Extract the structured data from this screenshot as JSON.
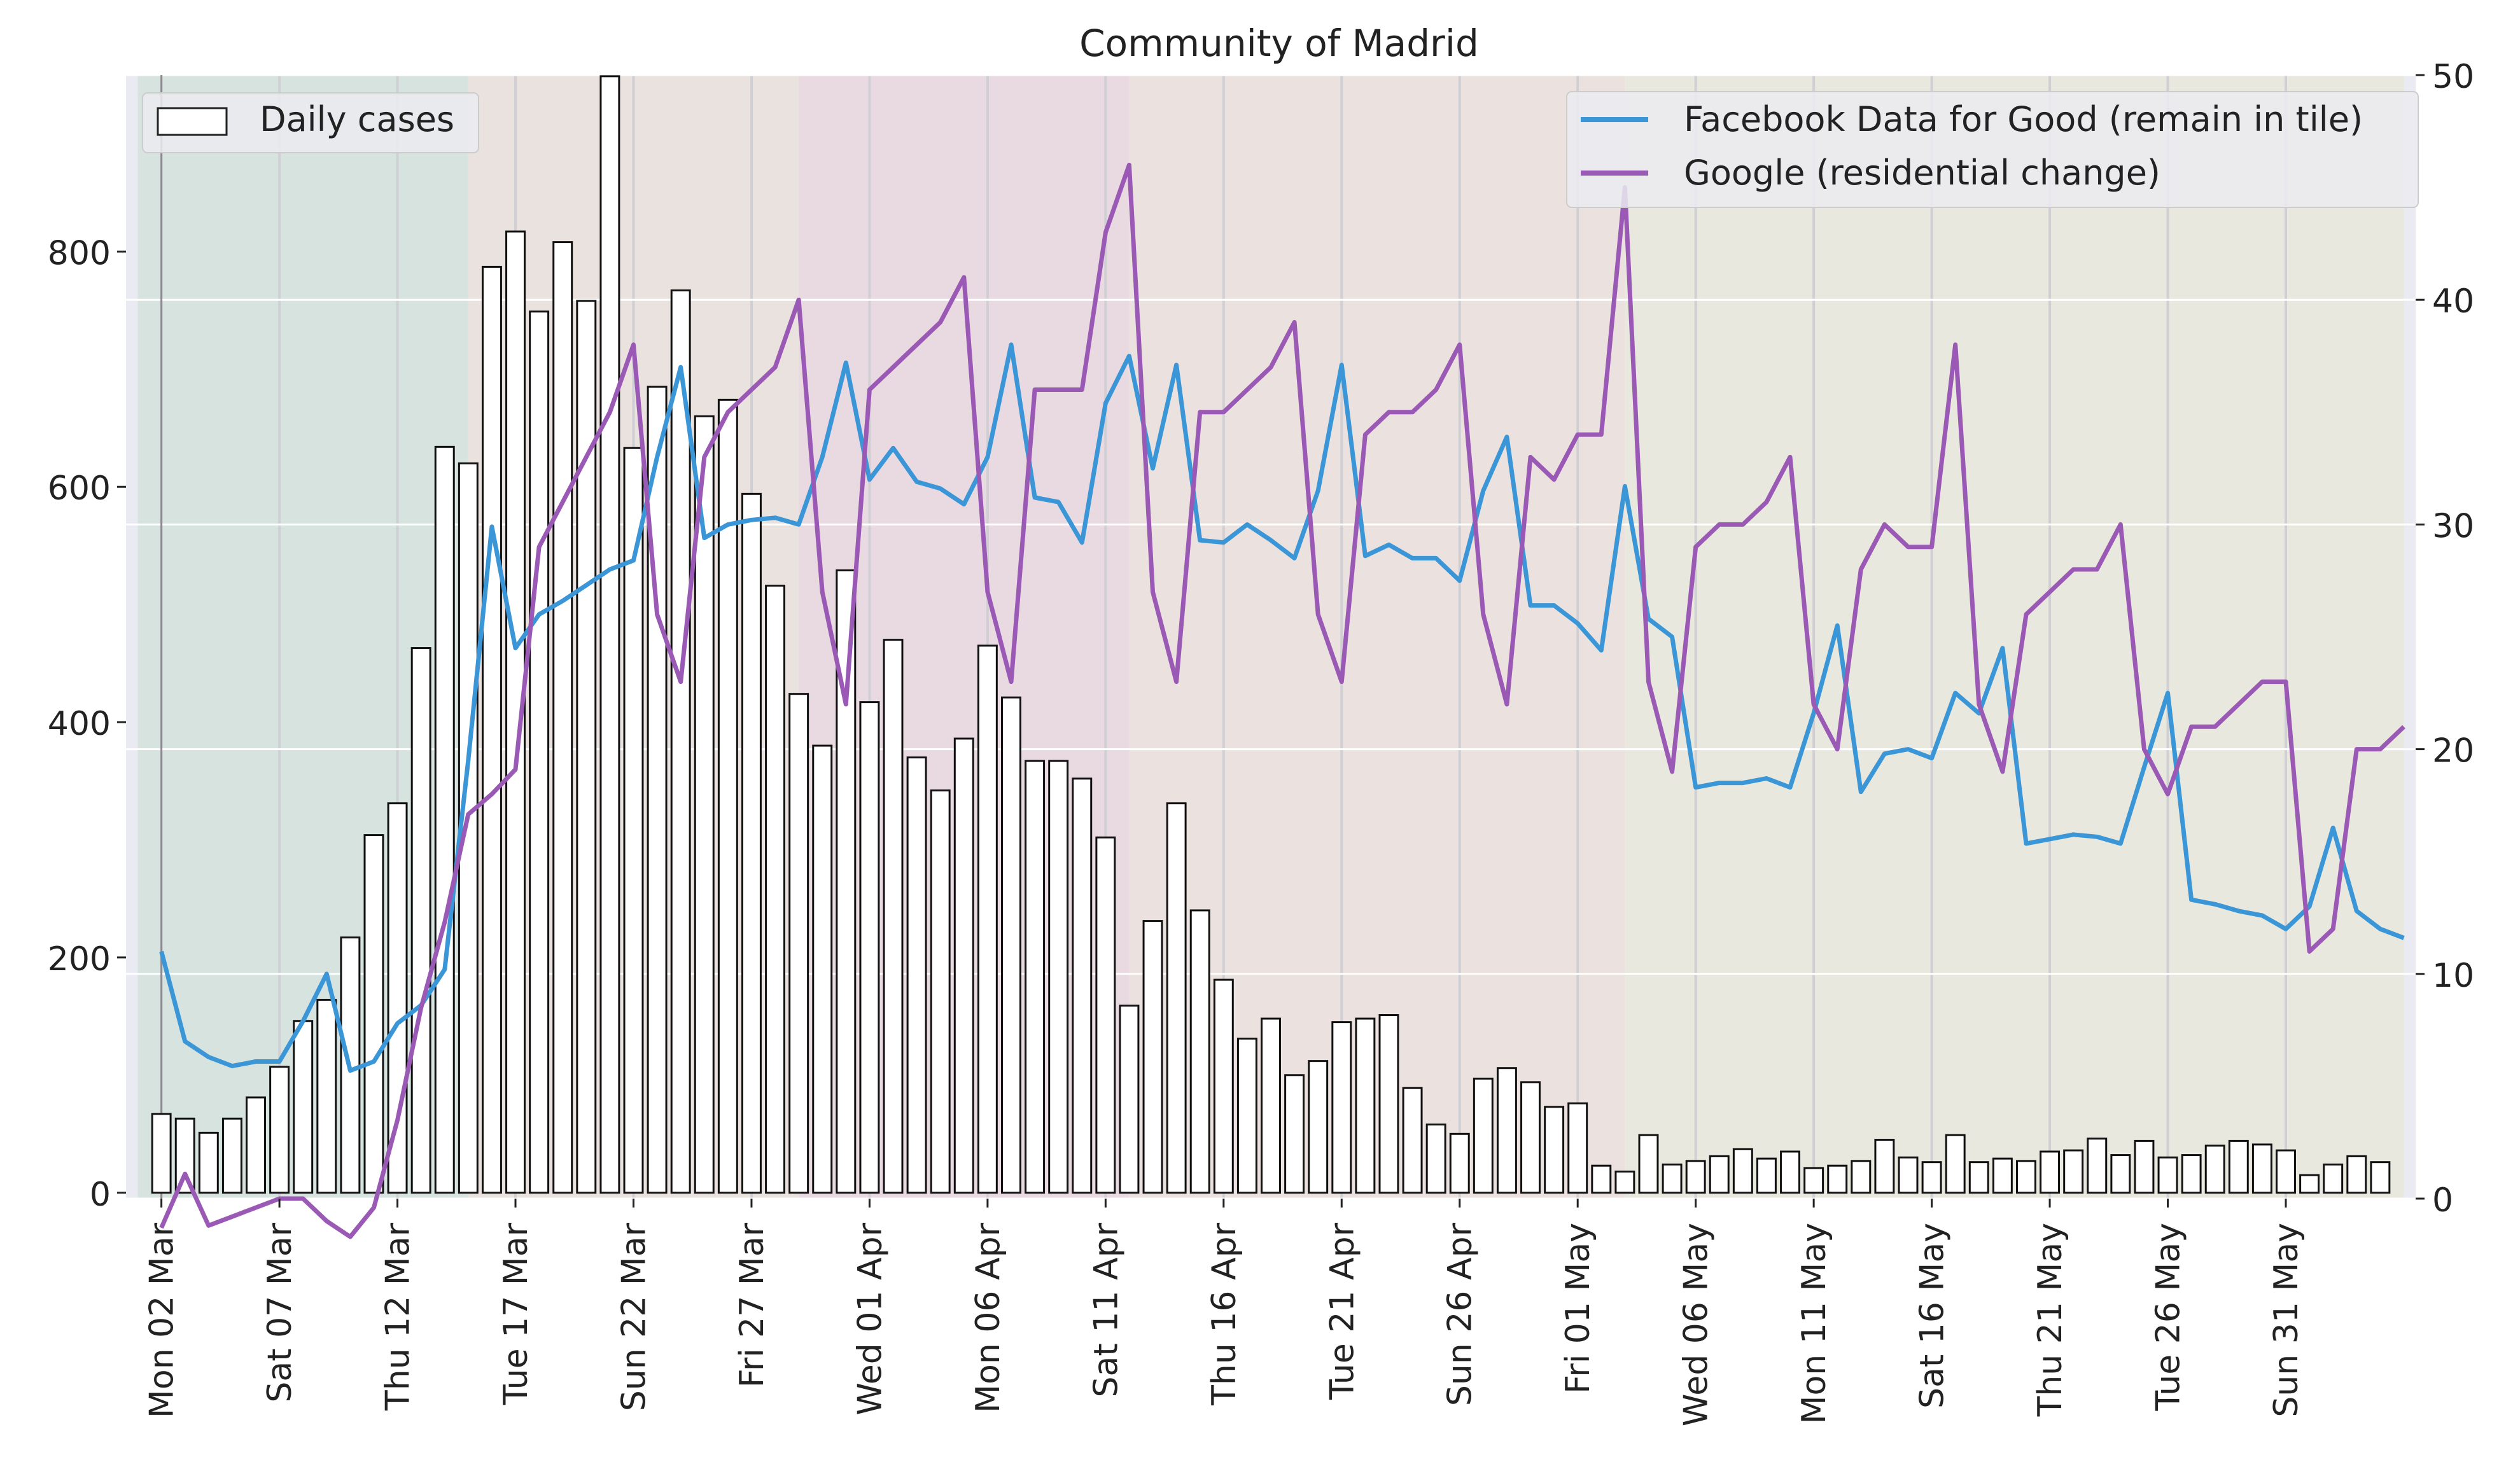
{
  "chart_data": {
    "type": "bar+line",
    "title": "Community of Madrid",
    "start_date": "2020-03-01",
    "num_days": 97,
    "xtick_labels": [
      "Mon 02 Mar",
      "Sat 07 Mar",
      "Thu 12 Mar",
      "Tue 17 Mar",
      "Sun 22 Mar",
      "Fri 27 Mar",
      "Wed 01 Apr",
      "Mon 06 Apr",
      "Sat 11 Apr",
      "Thu 16 Apr",
      "Tue 21 Apr",
      "Sun 26 Apr",
      "Fri 01 May",
      "Wed 06 May",
      "Mon 11 May",
      "Sat 16 May",
      "Thu 21 May",
      "Tue 26 May",
      "Sun 31 May"
    ],
    "xtick_day_index": [
      1,
      6,
      11,
      16,
      21,
      26,
      31,
      36,
      41,
      46,
      51,
      56,
      61,
      66,
      71,
      76,
      81,
      86,
      91
    ],
    "left_axis": {
      "ylim": [
        -5,
        950
      ],
      "ticks": [
        0,
        200,
        400,
        600,
        800
      ]
    },
    "right_axis": {
      "ylim": [
        0,
        50
      ],
      "ticks": [
        0,
        10,
        20,
        30,
        40,
        50
      ]
    },
    "bars": {
      "name": "Daily cases",
      "values": [
        67,
        63,
        51,
        63,
        81,
        107,
        146,
        164,
        217,
        304,
        331,
        463,
        634,
        620,
        787,
        817,
        749,
        808,
        758,
        949,
        633,
        685,
        767,
        660,
        674,
        594,
        516,
        424,
        380,
        529,
        417,
        470,
        370,
        342,
        386,
        465,
        421,
        367,
        367,
        352,
        302,
        159,
        231,
        331,
        240,
        181,
        131,
        148,
        100,
        112,
        145,
        148,
        151,
        89,
        58,
        50,
        97,
        106,
        94,
        73,
        76,
        23,
        18,
        49,
        24,
        27,
        31,
        37,
        29,
        35,
        21,
        23,
        27,
        45,
        30,
        26,
        49,
        26,
        29,
        27,
        35,
        36,
        46,
        32,
        44,
        30,
        32,
        40,
        44,
        41,
        36,
        15,
        24,
        31,
        26
      ]
    },
    "series": [
      {
        "name": "Facebook Data for Good (remain in tile)",
        "color": "#3a96d6",
        "x": [
          1,
          2,
          3,
          4,
          5,
          6,
          7,
          8,
          9,
          10,
          11,
          12,
          13,
          14,
          15,
          16,
          17,
          18,
          19,
          20,
          21,
          22,
          23,
          24,
          25,
          26,
          27,
          28,
          29,
          30,
          31,
          32,
          33,
          34,
          35,
          36,
          37,
          38,
          39,
          40,
          41,
          42,
          43,
          44,
          45,
          46,
          47,
          48,
          49,
          50,
          51,
          52,
          53,
          54,
          55,
          56,
          57,
          58,
          59,
          60,
          61,
          62,
          63,
          64,
          65,
          66,
          67,
          68,
          69,
          70,
          71,
          72,
          73,
          74,
          75,
          76,
          77,
          78,
          79,
          80,
          81,
          82,
          83,
          84,
          85,
          86,
          87,
          88,
          89,
          90,
          91,
          92,
          93,
          94,
          95,
          96
        ],
        "values": [
          11.0,
          7,
          6.3,
          5.9,
          6.1,
          6.1,
          7.9,
          10.0,
          5.7,
          6.1,
          7.8,
          8.6,
          10.2,
          19.5,
          29.9,
          24.5,
          26.0,
          26.6,
          27.3,
          28.0,
          28.4,
          33.0,
          37.0,
          29.4,
          30.0,
          30.2,
          30.3,
          30.0,
          33.0,
          37.2,
          32.0,
          33.4,
          31.9,
          31.6,
          30.9,
          33.0,
          38.0,
          31.2,
          31.0,
          29.2,
          35.4,
          37.5,
          32.5,
          37.1,
          29.3,
          29.2,
          30.0,
          29.3,
          28.5,
          31.5,
          37.1,
          28.6,
          29.1,
          28.5,
          28.5,
          27.5,
          31.5,
          33.9,
          26.4,
          26.4,
          25.6,
          24.4,
          31.7,
          25.8,
          25.0,
          18.3,
          18.5,
          18.5,
          18.7,
          18.3,
          21.6,
          25.5,
          18.1,
          19.8,
          20.0,
          19.6,
          22.5,
          21.6,
          24.5,
          15.8,
          16.0,
          16.2,
          16.1,
          15.8,
          19.2,
          22.5,
          13.3,
          13.1,
          12.8,
          12.6,
          12.0,
          13.0,
          16.5,
          12.8,
          12.0,
          11.6
        ]
      },
      {
        "name": "Google (residential change)",
        "color": "#9b59b6",
        "x": [
          1,
          2,
          3,
          4,
          5,
          6,
          7,
          8,
          9,
          10,
          11,
          12,
          13,
          14,
          15,
          16,
          17,
          18,
          19,
          20,
          21,
          22,
          23,
          24,
          25,
          26,
          27,
          28,
          29,
          30,
          31,
          32,
          33,
          34,
          35,
          36,
          37,
          38,
          39,
          40,
          41,
          42,
          43,
          44,
          45,
          46,
          47,
          48,
          49,
          50,
          51,
          52,
          53,
          54,
          55,
          56,
          57,
          58,
          59,
          60,
          61,
          62,
          63,
          64,
          65,
          66,
          67,
          68,
          69,
          70,
          71,
          72,
          73,
          74,
          75,
          76,
          77,
          78,
          79,
          80,
          81,
          82,
          83,
          84,
          85,
          86,
          87,
          88,
          89,
          90,
          91,
          92,
          93,
          94,
          95,
          96
        ],
        "values": [
          -1.3,
          1.1,
          -1.2,
          -0.8,
          -0.4,
          0,
          0,
          -1,
          -1.7,
          -0.4,
          3.5,
          8.5,
          12.3,
          17.1,
          18.0,
          19.1,
          29.0,
          31.0,
          33.0,
          35.0,
          38.0,
          26.0,
          23.0,
          33.0,
          35.0,
          36.0,
          37.0,
          40.0,
          27.0,
          22.0,
          36.0,
          37.0,
          38.0,
          39.0,
          41.0,
          27.0,
          23.0,
          36.0,
          36.0,
          36.0,
          43.0,
          46.0,
          27.0,
          23.0,
          35.0,
          35.0,
          36.0,
          37.0,
          39.0,
          26.0,
          23.0,
          34.0,
          35.0,
          35.0,
          36.0,
          38.0,
          26.0,
          22.0,
          33.0,
          32.0,
          34.0,
          34.0,
          45.0,
          23.0,
          19.0,
          29.0,
          30.0,
          30.0,
          31.0,
          33.0,
          22.0,
          20.0,
          28.0,
          30.0,
          29.0,
          29.0,
          38.0,
          22.0,
          19.0,
          26.0,
          27.0,
          28.0,
          28.0,
          30.0,
          20.0,
          18.0,
          21.0,
          21.0,
          22.0,
          23.0,
          23.0,
          11.0,
          12.0,
          20.0,
          20.0,
          21.0
        ]
      }
    ],
    "background_bands": [
      {
        "from": 0.5,
        "to": 14.5,
        "color": "#d6e3df"
      },
      {
        "from": 14.5,
        "to": 28.5,
        "color": "#eae2df"
      },
      {
        "from": 28.5,
        "to": 42.5,
        "color": "#e9d9e1"
      },
      {
        "from": 42.5,
        "to": 63.5,
        "color": "#ebe2df"
      },
      {
        "from": 63.5,
        "to": 96.5,
        "color": "#e9e8de"
      }
    ],
    "grid": true,
    "legend_left": {
      "placement": "top-left",
      "entries": [
        "Daily cases"
      ]
    },
    "legend_right": {
      "placement": "top-right",
      "entries": [
        "Facebook Data for Good (remain in tile)",
        "Google (residential change)"
      ]
    }
  }
}
